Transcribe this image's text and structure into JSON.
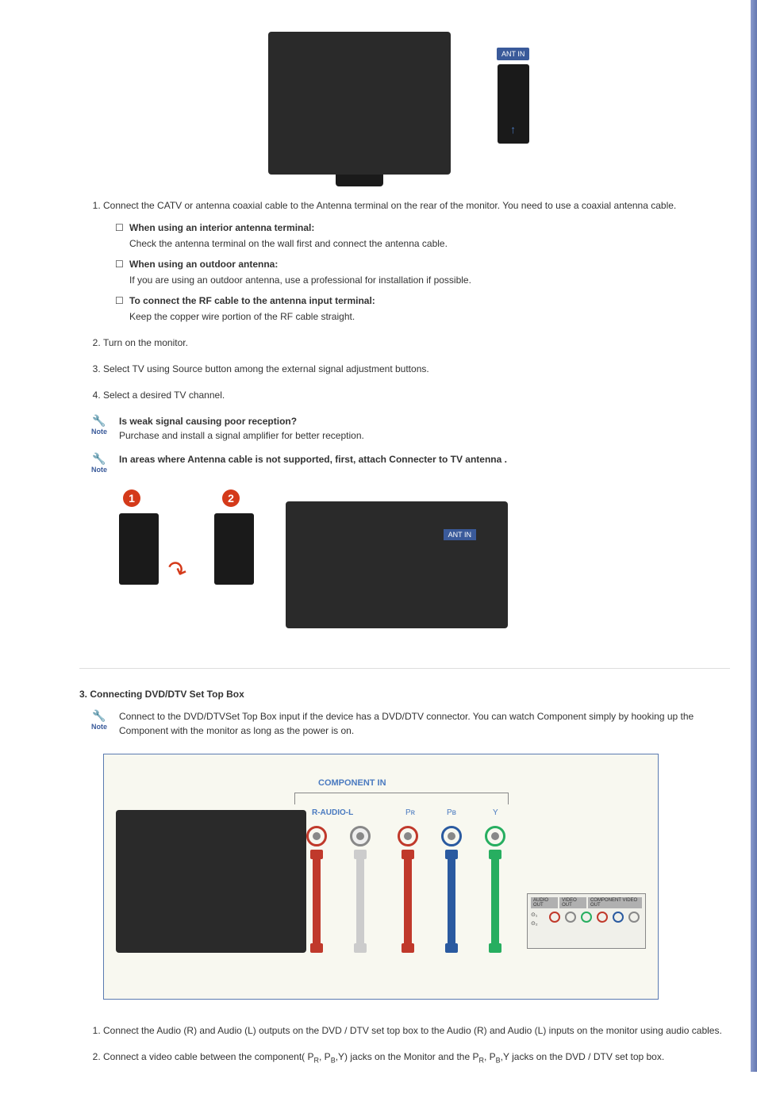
{
  "images": {
    "ant_label": "ANT IN",
    "antin_label": "ANT IN"
  },
  "step1": {
    "text": "Connect the CATV or antenna coaxial cable to the Antenna terminal on the rear of the monitor. You need to use a coaxial antenna cable.",
    "sub1_title": "When using an interior antenna terminal:",
    "sub1_desc": "Check the antenna terminal on the wall first and connect the antenna cable.",
    "sub2_title": "When using an outdoor antenna:",
    "sub2_desc": "If you are using an outdoor antenna, use a professional for installation if possible.",
    "sub3_title": "To connect the RF cable to the antenna input terminal:",
    "sub3_desc": "Keep the copper wire portion of the RF cable straight."
  },
  "step2": "Turn on the monitor.",
  "step3": "Select TV using Source button among the external signal adjustment buttons.",
  "step4": "Select a desired TV channel.",
  "note1": {
    "title": "Is weak signal causing poor reception?",
    "desc": "Purchase and install a signal amplifier for better reception."
  },
  "note2": {
    "title": "In areas where Antenna cable is not supported, first, attach Connecter to TV antenna ."
  },
  "section3": {
    "title": "3. Connecting DVD/DTV Set Top Box",
    "note": "Connect to the DVD/DTVSet Top Box input if the device has a DVD/DTV connector. You can watch Component simply by hooking up the Component with the monitor as long as the power is on.",
    "comp_label": "COMPONENT IN",
    "audio_label": "R-AUDIO-L",
    "pr": "Pʀ",
    "pb": "Pʙ",
    "y": "Y",
    "dvd_headers": [
      "AUDIO OUT",
      "VIDEO OUT",
      "COMPONENT VIDEO OUT"
    ],
    "step1": "Connect the Audio (R) and Audio (L) outputs on the DVD / DTV set top box to the Audio (R) and Audio (L) inputs on the monitor using audio cables.",
    "step2_a": "Connect a video cable between the component( P",
    "step2_b": ", P",
    "step2_c": ",Y) jacks on the Monitor and the P",
    "step2_d": ", P",
    "step2_e": ",Y jacks on the DVD / DTV set top box.",
    "r": "R",
    "b": "B"
  },
  "note_label": "Note",
  "circles": {
    "one": "1",
    "two": "2"
  },
  "colors": {
    "red": "#c0392b",
    "blue": "#2a5aa0",
    "green": "#27ae60",
    "note_blue": "#3a5a9a",
    "circle_red": "#d43a1a"
  }
}
